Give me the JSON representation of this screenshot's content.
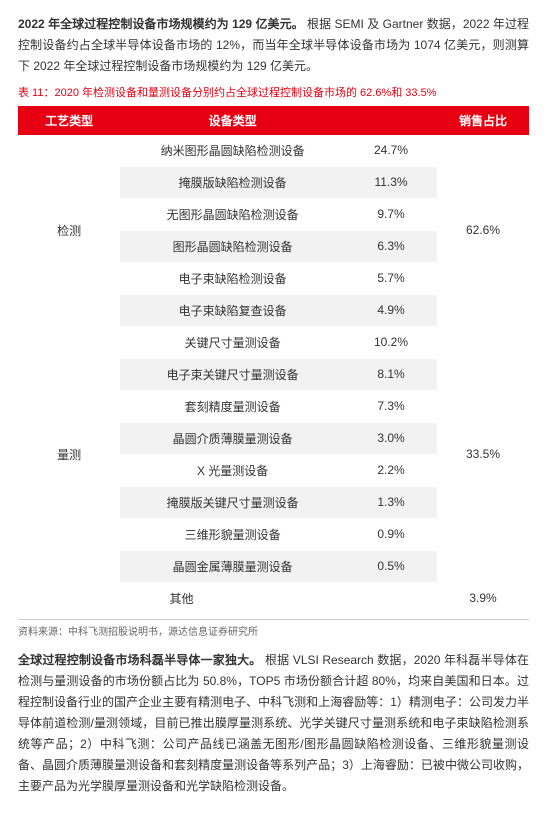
{
  "para1": {
    "lead": "2022 年全球过程控制设备市场规模约为 129 亿美元。",
    "rest": "根据 SEMI 及 Gartner 数据，2022 年过程控制设备约占全球半导体设备市场的 12%，而当年全球半导体设备市场为 1074 亿美元，则测算下 2022 年全球过程控制设备市场规模约为 129 亿美元。"
  },
  "table_title": "表 11：2020 年检测设备和量测设备分别约占全球过程控制设备市场的 62.6%和 33.5%",
  "columns": [
    "工艺类型",
    "设备类型",
    "",
    "销售占比"
  ],
  "groups": [
    {
      "cat": "检测",
      "sales": "62.6%",
      "rows": [
        [
          "纳米图形晶圆缺陷检测设备",
          "24.7%"
        ],
        [
          "掩膜版缺陷检测设备",
          "11.3%"
        ],
        [
          "无图形晶圆缺陷检测设备",
          "9.7%"
        ],
        [
          "图形晶圆缺陷检测设备",
          "6.3%"
        ],
        [
          "电子束缺陷检测设备",
          "5.7%"
        ],
        [
          "电子束缺陷复查设备",
          "4.9%"
        ]
      ]
    },
    {
      "cat": "量测",
      "sales": "33.5%",
      "rows": [
        [
          "关键尺寸量测设备",
          "10.2%"
        ],
        [
          "电子束关键尺寸量测设备",
          "8.1%"
        ],
        [
          "套刻精度量测设备",
          "7.3%"
        ],
        [
          "晶圆介质薄膜量测设备",
          "3.0%"
        ],
        [
          "X 光量测设备",
          "2.2%"
        ],
        [
          "掩膜版关键尺寸量测设备",
          "1.3%"
        ],
        [
          "三维形貌量测设备",
          "0.9%"
        ],
        [
          "晶圆金属薄膜量测设备",
          "0.5%"
        ]
      ]
    }
  ],
  "other": {
    "label": "其他",
    "value": "3.9%"
  },
  "source": "资料来源：中科飞测招股说明书，源达信息证券研究所",
  "para2": {
    "lead": "全球过程控制设备市场科磊半导体一家独大。",
    "rest": "根据 VLSI Research 数据，2020 年科磊半导体在检测与量测设备的市场份额占比为 50.8%，TOP5 市场份额合计超 80%，均来自美国和日本。过程控制设备行业的国产企业主要有精测电子、中科飞测和上海睿励等：1）精测电子：公司发力半导体前道检测/量测领域，目前已推出膜厚量测系统、光学关键尺寸量测系统和电子束缺陷检测系统等产品；2）中科飞测：公司产品线已涵盖无图形/图形晶圆缺陷检测设备、三维形貌量测设备、晶圆介质薄膜量测设备和套刻精度量测设备等系列产品；3）上海睿励：已被中微公司收购，主要产品为光学膜厚量测设备和光学缺陷检测设备。"
  },
  "style": {
    "header_bg": "#e60012",
    "header_fg": "#ffffff",
    "row_alt_bg": "#f2f2f2",
    "title_color": "#e60012"
  }
}
